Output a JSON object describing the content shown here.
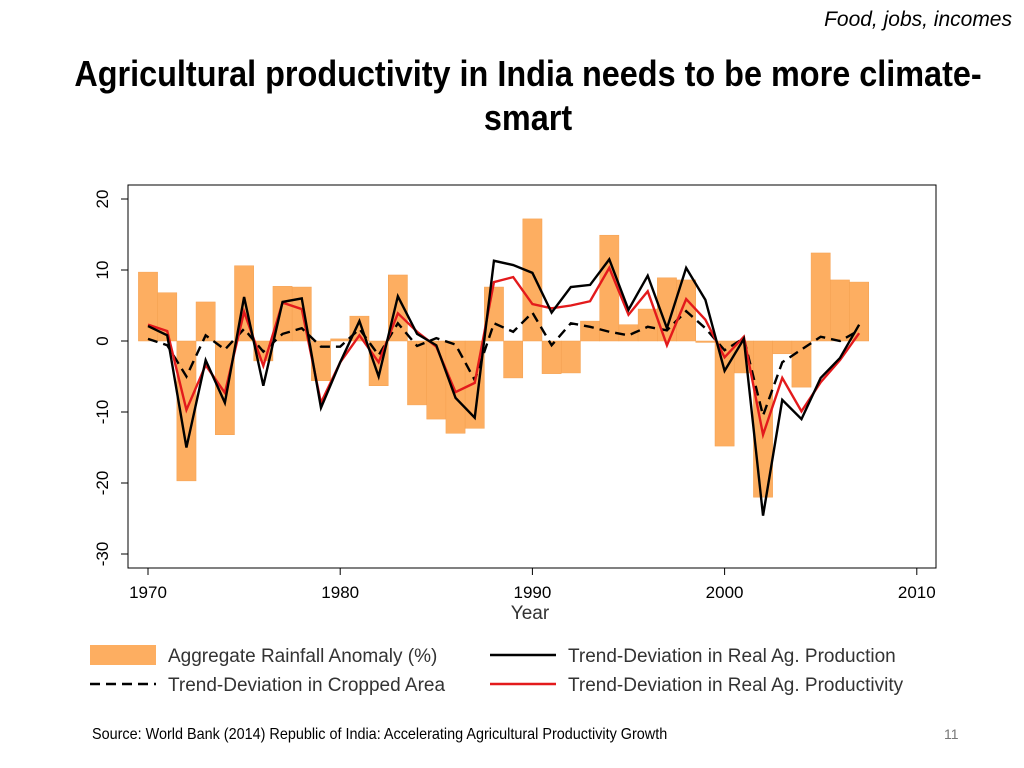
{
  "header": {
    "tag": "Food, jobs, incomes",
    "title": "Agricultural productivity in India needs to be more climate-smart"
  },
  "footer": {
    "source": "Source: World Bank (2014) Republic of India: Accelerating Agricultural Productivity Growth",
    "page": "11"
  },
  "chart_data": {
    "type": "bar+line",
    "xlabel": "Year",
    "ylabel": "",
    "xlim": [
      1969,
      2011
    ],
    "ylim": [
      -32,
      22
    ],
    "xticks": [
      "1970",
      "1980",
      "1990",
      "2000",
      "2010"
    ],
    "yticks": [
      "-30",
      "-20",
      "-10",
      "0",
      "10",
      "20"
    ],
    "grid": false,
    "legend_position": "bottom",
    "x": [
      1970,
      1971,
      1972,
      1973,
      1974,
      1975,
      1976,
      1977,
      1978,
      1979,
      1980,
      1981,
      1982,
      1983,
      1984,
      1985,
      1986,
      1987,
      1988,
      1989,
      1990,
      1991,
      1992,
      1993,
      1994,
      1995,
      1996,
      1997,
      1998,
      1999,
      2000,
      2001,
      2002,
      2003,
      2004,
      2005,
      2006,
      2007
    ],
    "series": [
      {
        "name": "Aggregate Rainfall Anomaly (%)",
        "kind": "bar",
        "color": "#fdae61",
        "values": [
          9.7,
          6.8,
          -19.7,
          5.5,
          -13.2,
          10.6,
          -2.8,
          7.7,
          7.6,
          -5.6,
          0.3,
          3.5,
          -6.3,
          9.3,
          -9,
          -11,
          -13,
          -12.3,
          7.6,
          -5.2,
          17.2,
          -4.6,
          -4.5,
          2.8,
          14.9,
          2.3,
          4.5,
          8.9,
          8.6,
          -0.2,
          -14.8,
          -4.5,
          -22,
          -1.8,
          -6.5,
          12.4,
          8.6,
          8.3
        ]
      },
      {
        "name": "Trend-Deviation in Real Ag. Production",
        "kind": "line",
        "color": "#000000",
        "dash": false,
        "values": [
          2.1,
          0.8,
          -15,
          -2.7,
          -8.7,
          6.2,
          -6.3,
          5.5,
          6,
          -9.4,
          -3,
          2.8,
          -5,
          6.3,
          1,
          -0.6,
          -8,
          -10.8,
          11.3,
          10.7,
          9.6,
          4,
          7.6,
          7.9,
          11.5,
          4.4,
          9.2,
          1.8,
          10.3,
          5.8,
          -4.2,
          0.3,
          -24.6,
          -8.3,
          -11,
          -5.2,
          -2.4,
          2.3
        ]
      },
      {
        "name": "Trend-Deviation in Cropped Area",
        "kind": "line",
        "color": "#000000",
        "dash": true,
        "values": [
          0.3,
          -0.6,
          -5,
          0.8,
          -1.2,
          1.7,
          -1.5,
          1,
          1.8,
          -0.8,
          -0.8,
          1.7,
          -2,
          2.5,
          -0.7,
          0.4,
          -0.5,
          -5.5,
          2.5,
          1.3,
          4,
          -0.6,
          2.5,
          2,
          1.3,
          0.8,
          2,
          1.5,
          4.2,
          1.8,
          -1.3,
          0.4,
          -10.5,
          -3,
          -1.2,
          0.6,
          0,
          1.5
        ]
      },
      {
        "name": "Trend-Deviation in Real Ag. Productivity",
        "kind": "line",
        "color": "#e31a1c",
        "dash": false,
        "values": [
          2.3,
          1.4,
          -9.7,
          -3.4,
          -7.3,
          4.1,
          -3.5,
          5.4,
          4.5,
          -8.7,
          -3,
          0.8,
          -3,
          3.9,
          1.3,
          -0.8,
          -7.2,
          -5.9,
          8.3,
          9,
          5.2,
          4.6,
          5,
          5.6,
          10.3,
          3.7,
          7,
          -0.6,
          5.9,
          3,
          -2.3,
          0.6,
          -13.2,
          -5.2,
          -9.9,
          -5.8,
          -2.7,
          1.1
        ]
      }
    ]
  }
}
